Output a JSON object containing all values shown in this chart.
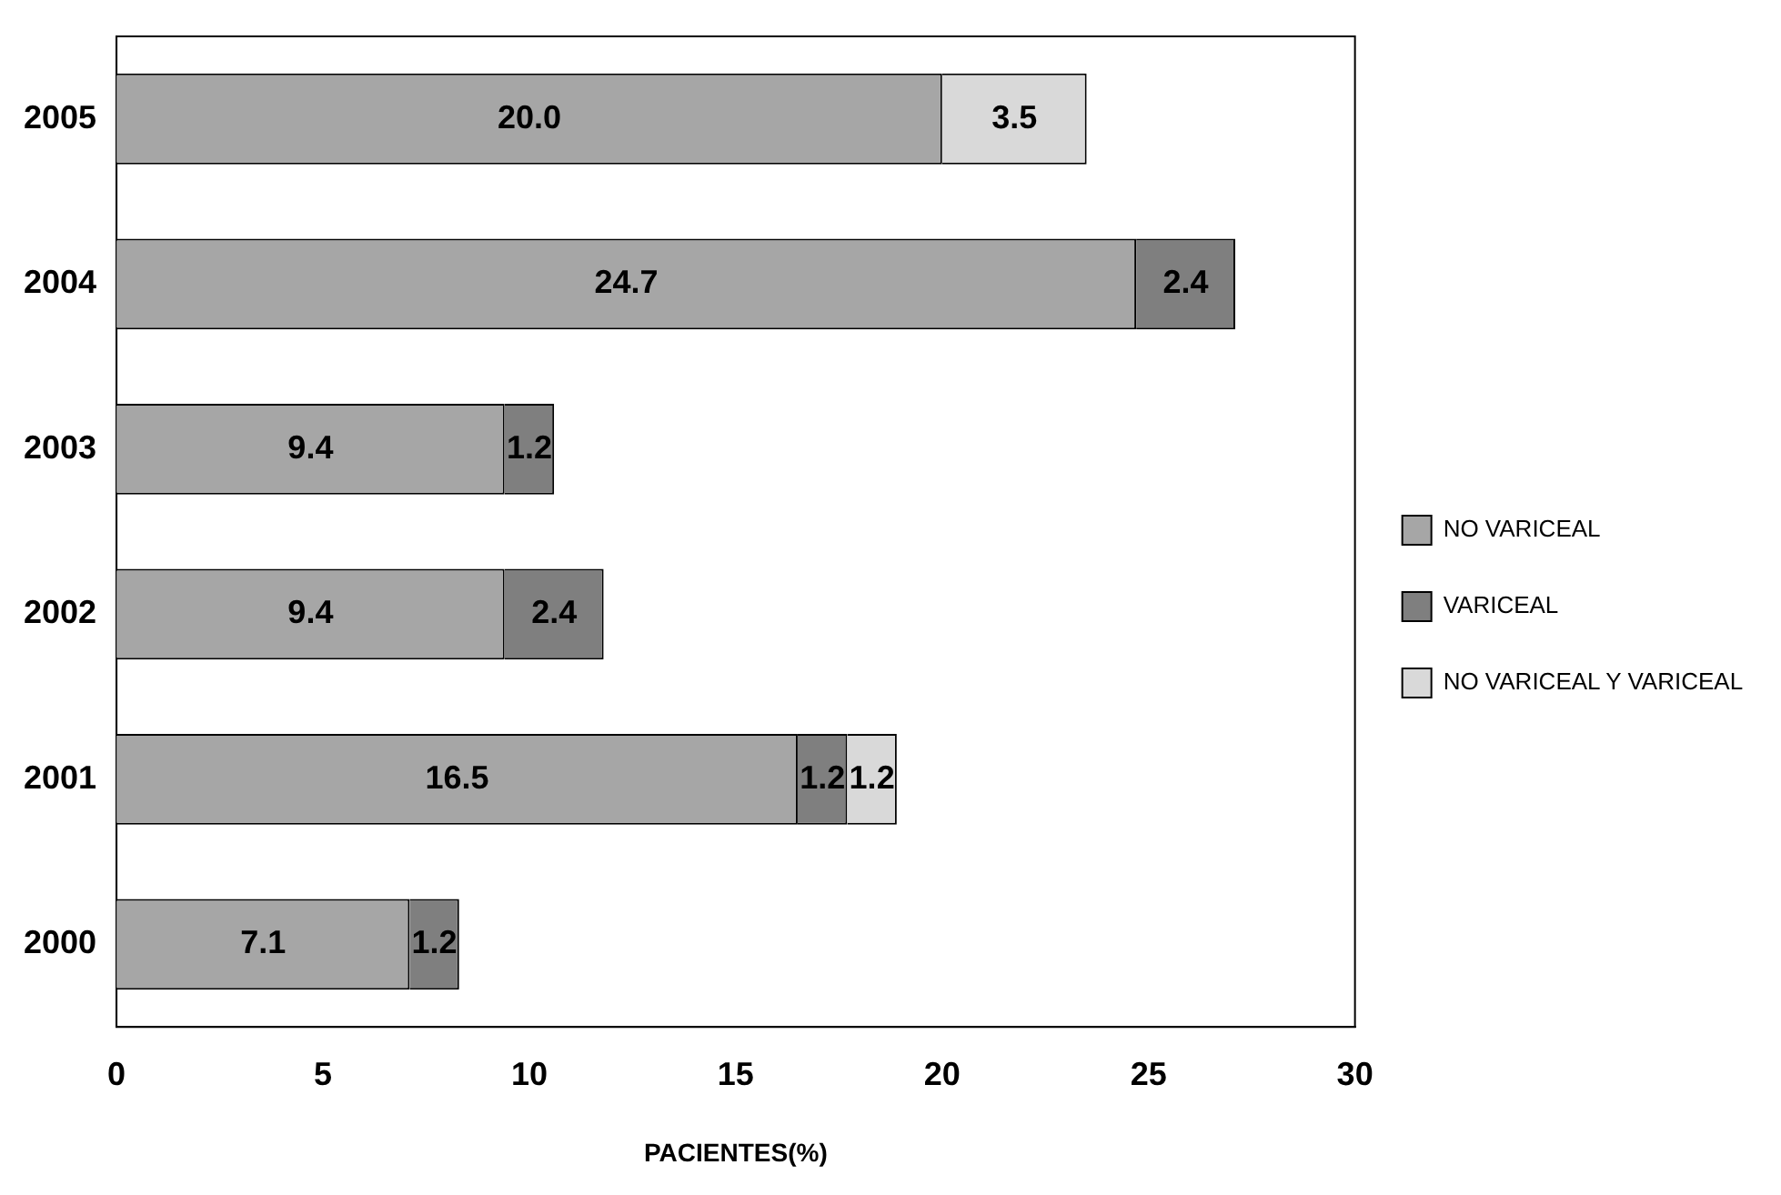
{
  "chart_data": {
    "type": "bar",
    "orientation": "horizontal",
    "stacked": true,
    "xlabel": "PACIENTES(%)",
    "categories": [
      "2005",
      "2004",
      "2003",
      "2002",
      "2001",
      "2000"
    ],
    "series": [
      {
        "name": "NO VARICEAL",
        "color": "#a6a6a6",
        "values": [
          20.0,
          24.7,
          9.4,
          9.4,
          16.5,
          7.1
        ],
        "value_labels": [
          "20.0",
          "24.7",
          "9.4",
          "9.4",
          "16.5",
          "7.1"
        ]
      },
      {
        "name": "VARICEAL",
        "color": "#7f7f7f",
        "values": [
          null,
          2.4,
          1.2,
          2.4,
          1.2,
          1.2
        ],
        "value_labels": [
          null,
          "2.4",
          "1.2",
          "2.4",
          "1.2",
          "1.2"
        ]
      },
      {
        "name": "NO VARICEAL Y VARICEAL",
        "color": "#d9d9d9",
        "values": [
          3.5,
          null,
          null,
          null,
          1.2,
          null
        ],
        "value_labels": [
          "3.5",
          null,
          null,
          null,
          "1.2",
          null
        ]
      }
    ],
    "xlim": [
      0,
      30
    ],
    "xticks": [
      0,
      5,
      10,
      15,
      20,
      25,
      30
    ],
    "grid": false,
    "legend": "right"
  }
}
